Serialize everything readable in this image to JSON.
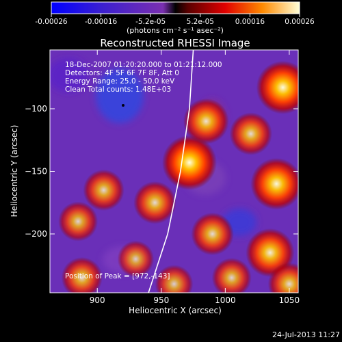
{
  "chart_data": {
    "type": "heatmap",
    "title": "Reconstructed RHESSI Image",
    "xlabel": "Heliocentric X (arcsec)",
    "ylabel": "Heliocentric Y (arcsec)",
    "xlim": [
      863,
      1057
    ],
    "ylim": [
      -247,
      -53
    ],
    "xticks": [
      900,
      950,
      1000,
      1050
    ],
    "yticks": [
      -100,
      -150,
      -200
    ],
    "colorbar": {
      "label": "(photons cm⁻² s⁻¹ asec⁻²)",
      "range": [
        -0.00026,
        0.00026
      ],
      "ticks": [
        "-0.00026",
        "-0.00016",
        "-5.2e-05",
        "5.2e-05",
        "0.00016",
        "0.00026"
      ]
    },
    "annotations": [
      "18-Dec-2007 01:20:20.000 to 01:21:12.000",
      "Detectors: 4F 5F 6F 7F 8F, Att 0",
      "Energy Range: 25.0 - 50.0 keV",
      "Clean     Total counts: 1.48E+03"
    ],
    "peak_label": "Position of Peak = [972,-143]",
    "peak": [
      972,
      -143
    ],
    "sources": [
      {
        "x": 972,
        "y": -143,
        "level": 1.0
      },
      {
        "x": 1045,
        "y": -83,
        "level": 0.95
      },
      {
        "x": 1040,
        "y": -160,
        "level": 0.9
      },
      {
        "x": 1035,
        "y": -215,
        "level": 0.8
      },
      {
        "x": 1020,
        "y": -120,
        "level": 0.6
      },
      {
        "x": 985,
        "y": -110,
        "level": 0.7
      },
      {
        "x": 990,
        "y": -200,
        "level": 0.6
      },
      {
        "x": 905,
        "y": -165,
        "level": 0.55
      },
      {
        "x": 945,
        "y": -175,
        "level": 0.6
      },
      {
        "x": 885,
        "y": -190,
        "level": 0.5
      },
      {
        "x": 930,
        "y": -220,
        "level": 0.4
      },
      {
        "x": 1005,
        "y": -235,
        "level": 0.5
      },
      {
        "x": 960,
        "y": -240,
        "level": 0.45
      },
      {
        "x": 888,
        "y": -235,
        "level": 0.55
      },
      {
        "x": 1050,
        "y": -240,
        "level": 0.6
      }
    ],
    "limb_curve": [
      [
        975,
        -53
      ],
      [
        972,
        -100
      ],
      [
        965,
        -150
      ],
      [
        955,
        -200
      ],
      [
        940,
        -247
      ]
    ]
  },
  "footer_date": "24-Jul-2013 11:27"
}
